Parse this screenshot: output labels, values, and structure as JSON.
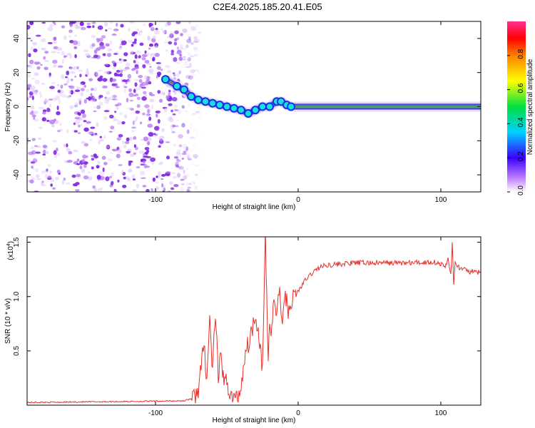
{
  "title": "C2E4.2025.185.20.41.E05",
  "colors": {
    "snr_line": "#e8302a",
    "ridge": "#e83030",
    "noise": "#7a1fe0"
  },
  "chart_data": [
    {
      "type": "heatmap",
      "xlabel": "Height of straight line (km)",
      "ylabel": "Frequency (Hz)",
      "xlim": [
        -190,
        128
      ],
      "ylim": [
        -50,
        50
      ],
      "x_ticks": [
        -100,
        0,
        100
      ],
      "y_ticks": [
        -40,
        -20,
        0,
        20,
        40
      ],
      "colorbar": {
        "label": "Normalized spectral amplitude",
        "ticks": [
          "0.0",
          "0.2",
          "0.4",
          "0.6",
          "0.8"
        ],
        "range": [
          0,
          1
        ],
        "colormap": "rainbow (white-purple-blue-cyan-green-yellow-orange-red-magenta)"
      },
      "noise_region_x": [
        -190,
        -75
      ],
      "signal_track": {
        "x": [
          -93,
          -85,
          -80,
          -75,
          -70,
          -65,
          -60,
          -55,
          -50,
          -45,
          -40,
          -35,
          -30,
          -25,
          -20,
          -15,
          -12,
          -8,
          -5,
          0,
          20,
          50,
          80,
          100,
          128
        ],
        "y": [
          16,
          12,
          10,
          6,
          4,
          3,
          2,
          1,
          0,
          -1,
          -2,
          -4,
          -2,
          0,
          0,
          3,
          3,
          1,
          0,
          0,
          0,
          0,
          0,
          0,
          0
        ]
      }
    },
    {
      "type": "line",
      "xlabel": "Height of straight line (km)",
      "ylabel": "SNR (10 * v/v)",
      "y_multiplier": "(x10^4)",
      "y_multiplier_base": "(x10",
      "y_multiplier_exp": "4",
      "xlim": [
        -190,
        128
      ],
      "ylim": [
        0,
        15500
      ],
      "x_ticks": [
        -100,
        0,
        100
      ],
      "y_ticks": [
        "0.5",
        "1.0",
        "1.5"
      ],
      "series": [
        {
          "x": [
            -190,
            -150,
            -110,
            -80,
            -73,
            -70,
            -66,
            -64,
            -62,
            -60,
            -58,
            -56,
            -54,
            -52,
            -50,
            -48,
            -45,
            -42,
            -40,
            -37,
            -34,
            -30,
            -27,
            -25,
            -23,
            -21,
            -20,
            -19,
            -17,
            -15,
            -13,
            -11,
            -9,
            -7,
            -5,
            -3,
            0,
            5,
            10,
            15,
            20,
            30,
            40,
            50,
            60,
            70,
            80,
            90,
            95,
            100,
            103,
            105,
            107,
            108,
            109,
            110,
            115,
            120,
            128
          ],
          "y": [
            250,
            300,
            350,
            400,
            700,
            1500,
            5500,
            2500,
            8000,
            3000,
            8700,
            2200,
            5000,
            1600,
            2500,
            1000,
            600,
            800,
            1800,
            5000,
            6000,
            8500,
            6000,
            3200,
            15500,
            4000,
            8000,
            6200,
            10000,
            8000,
            11000,
            7000,
            10500,
            8500,
            9500,
            10000,
            10500,
            11500,
            12200,
            12700,
            12900,
            13000,
            13100,
            13100,
            13100,
            13100,
            13100,
            13150,
            13200,
            13000,
            12700,
            13500,
            12000,
            15000,
            11000,
            13000,
            12500,
            12300,
            12200
          ]
        }
      ]
    }
  ]
}
